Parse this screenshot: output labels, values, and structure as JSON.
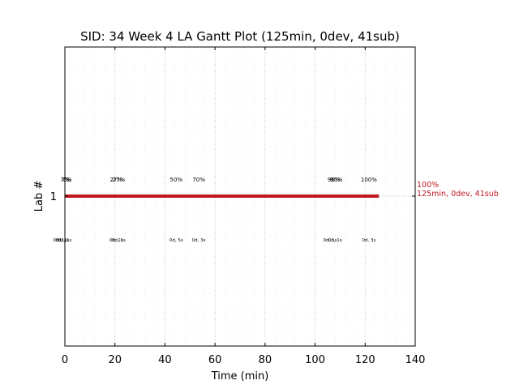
{
  "chart_data": {
    "type": "gantt",
    "title": "SID: 34 Week 4 LA Gantt Plot (125min, 0dev, 41sub)",
    "xlabel": "Time (min)",
    "ylabel": "Lab #",
    "xlim": [
      0,
      140
    ],
    "x_ticks": [
      0,
      20,
      40,
      60,
      80,
      100,
      120,
      140
    ],
    "x_tick_labels": [
      "0",
      "20",
      "40",
      "60",
      "80",
      "100",
      "120",
      "140"
    ],
    "y_ticks": [
      1
    ],
    "y_tick_labels": [
      "1"
    ],
    "grid": true,
    "bars": [
      {
        "lab": 1,
        "start": 0,
        "end": 125.5,
        "color": "#c0181f"
      }
    ],
    "end_label": {
      "lines": [
        "100%",
        "125min, 0dev, 41sub"
      ],
      "color": "#c0181f"
    },
    "percent_labels": [
      {
        "x": 0,
        "text": "7%"
      },
      {
        "x": 0.5,
        "text": "7%"
      },
      {
        "x": 1,
        "text": "7%"
      },
      {
        "x": 20.5,
        "text": "27%"
      },
      {
        "x": 21.5,
        "text": "27%"
      },
      {
        "x": 44.5,
        "text": "50%"
      },
      {
        "x": 53.5,
        "text": "70%"
      },
      {
        "x": 107.5,
        "text": "90%"
      },
      {
        "x": 108.5,
        "text": "90%"
      },
      {
        "x": 121.5,
        "text": "100%"
      }
    ],
    "duration_labels": [
      {
        "x": -2,
        "text": "0d, 1s"
      },
      {
        "x": -1,
        "text": "0d, 1s"
      },
      {
        "x": 0,
        "text": "0d, 1s"
      },
      {
        "x": 20.5,
        "text": "0d, 1s"
      },
      {
        "x": 21.5,
        "text": "0d, 1s"
      },
      {
        "x": 44.5,
        "text": "0d, 5s"
      },
      {
        "x": 53.5,
        "text": "0d, 3s"
      },
      {
        "x": 106,
        "text": "0d, 1s"
      },
      {
        "x": 108,
        "text": "0d, 1s"
      },
      {
        "x": 121.5,
        "text": "0d, 3s"
      }
    ],
    "colors": {
      "bar": "#c0181f",
      "grid": "#b0b0b0",
      "minor_grid": "#e6e6e6"
    }
  }
}
